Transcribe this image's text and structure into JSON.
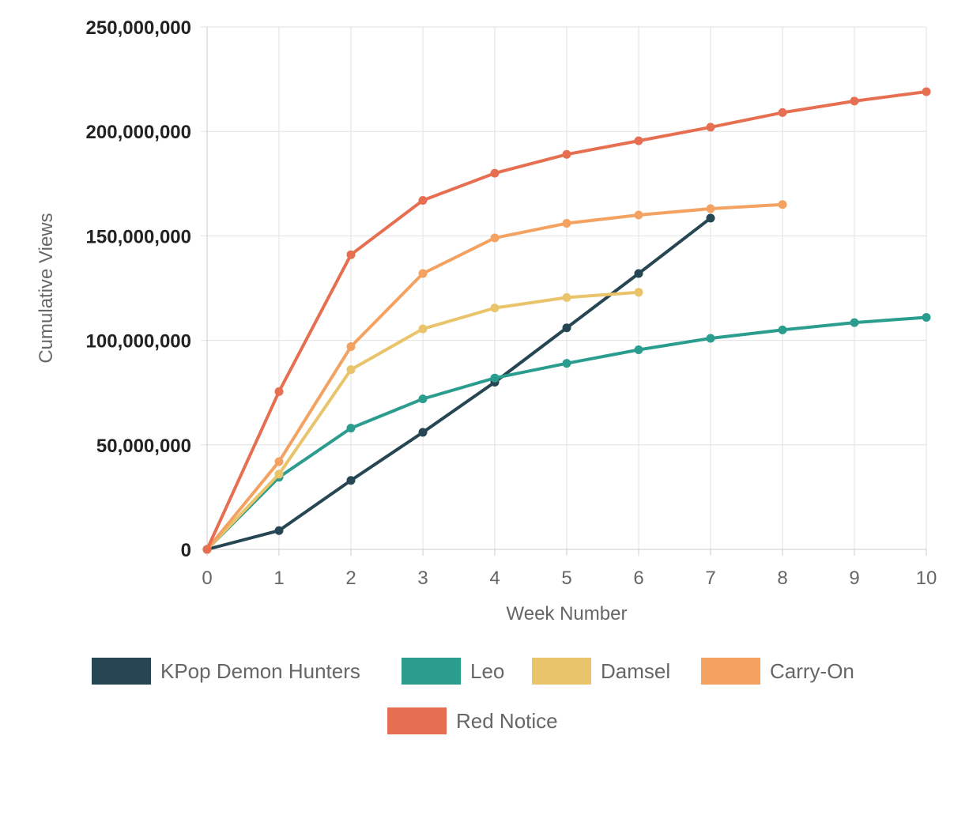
{
  "chart_data": {
    "type": "line",
    "title": "",
    "xlabel": "Week Number",
    "ylabel": "Cumulative Views",
    "xlim": [
      0,
      10
    ],
    "ylim": [
      0,
      250000000
    ],
    "x_ticks": [
      0,
      1,
      2,
      3,
      4,
      5,
      6,
      7,
      8,
      9,
      10
    ],
    "y_ticks": [
      0,
      50000000,
      100000000,
      150000000,
      200000000,
      250000000
    ],
    "y_tick_labels": [
      "0",
      "50,000,000",
      "100,000,000",
      "150,000,000",
      "200,000,000",
      "250,000,000"
    ],
    "grid": true,
    "legend_position": "bottom",
    "series": [
      {
        "name": "KPop Demon Hunters",
        "color": "#264653",
        "x": [
          0,
          1,
          2,
          3,
          4,
          5,
          6,
          7
        ],
        "values": [
          0,
          9000000,
          33000000,
          56000000,
          80000000,
          106000000,
          132000000,
          158500000
        ]
      },
      {
        "name": "Leo",
        "color": "#2a9d8f",
        "x": [
          0,
          1,
          2,
          3,
          4,
          5,
          6,
          7,
          8,
          9,
          10
        ],
        "values": [
          0,
          34500000,
          58000000,
          72000000,
          82000000,
          89000000,
          95500000,
          101000000,
          105000000,
          108500000,
          111000000
        ]
      },
      {
        "name": "Damsel",
        "color": "#e9c46a",
        "x": [
          0,
          1,
          2,
          3,
          4,
          5,
          6
        ],
        "values": [
          0,
          36000000,
          86000000,
          105500000,
          115500000,
          120500000,
          123000000
        ]
      },
      {
        "name": "Carry-On",
        "color": "#f4a261",
        "x": [
          0,
          1,
          2,
          3,
          4,
          5,
          6,
          7,
          8
        ],
        "values": [
          0,
          42000000,
          97000000,
          132000000,
          149000000,
          156000000,
          160000000,
          163000000,
          165000000
        ]
      },
      {
        "name": "Red Notice",
        "color": "#e76f51",
        "x": [
          0,
          1,
          2,
          3,
          4,
          5,
          6,
          7,
          8,
          9,
          10
        ],
        "values": [
          0,
          75500000,
          141000000,
          167000000,
          180000000,
          189000000,
          195500000,
          202000000,
          209000000,
          214500000,
          219000000
        ]
      }
    ]
  }
}
